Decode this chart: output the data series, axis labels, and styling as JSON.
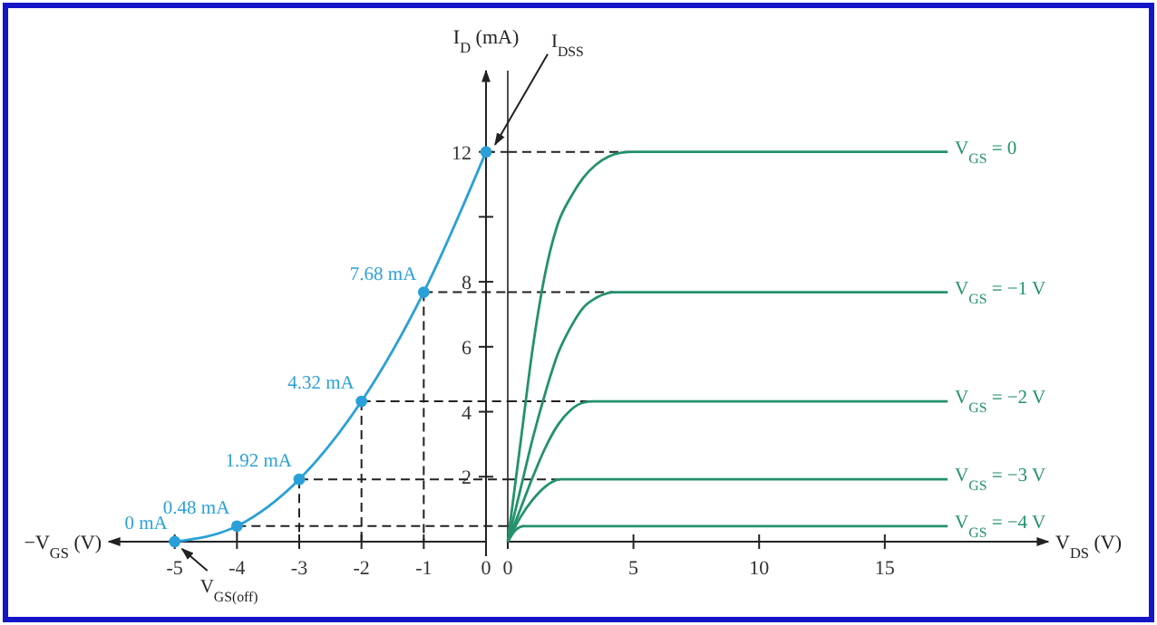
{
  "chart_data": [
    {
      "type": "line",
      "xlabel": "−V$_{GS}$ (V)",
      "ylabel": "I$_{D}$ (mA)",
      "x": [
        -5,
        -4,
        -3,
        -2,
        -1,
        0
      ],
      "xlim": [
        -6,
        0
      ],
      "xticks": [
        -5,
        -4,
        -3,
        -2,
        -1,
        0
      ],
      "ylim": [
        0,
        14.5
      ],
      "yticks": [
        2,
        4,
        6,
        8,
        {
          "value": 10,
          "label": null
        },
        12
      ],
      "marker": "circle",
      "series": [
        {
          "color": "#2aa0d8",
          "values": [
            0,
            0.48,
            1.92,
            4.32,
            7.68,
            12
          ],
          "value_labels": [
            "0 mA",
            "0.48 mA",
            "1.92 mA",
            "4.32 mA",
            "7.68 mA",
            null
          ]
        }
      ],
      "annotations": [
        {
          "text": "V$_{GS(off)}$",
          "x": -5,
          "y": 0
        },
        {
          "text": "I$_{DSS}$",
          "x": 0,
          "y": 12
        }
      ]
    },
    {
      "type": "line",
      "xlabel": "V$_{DS}$ (V)",
      "xlim": [
        0,
        21.5
      ],
      "xticks": [
        0,
        5,
        10,
        15
      ],
      "ylim": [
        0,
        14.5
      ],
      "tick_labels": "x",
      "series": [
        {
          "name": "V$_{GS}$ = 0",
          "color": "#23926a",
          "x": [
            0,
            0.5,
            1,
            1.5,
            2,
            2.5,
            3,
            3.5,
            4,
            4.5,
            5,
            17.5
          ],
          "values": [
            0,
            3,
            6,
            8.3,
            9.8,
            10.6,
            11.2,
            11.6,
            11.85,
            11.97,
            12,
            12
          ]
        },
        {
          "name": "V$_{GS}$ = −1 V",
          "color": "#23926a",
          "x": [
            0,
            0.5,
            1,
            1.5,
            2,
            2.5,
            3,
            3.5,
            4,
            4.2,
            17.5
          ],
          "values": [
            0,
            1.6,
            3.2,
            4.6,
            5.8,
            6.6,
            7.2,
            7.5,
            7.66,
            7.68,
            7.68
          ]
        },
        {
          "name": "V$_{GS}$ = −2 V",
          "color": "#23926a",
          "x": [
            0,
            0.5,
            1,
            1.5,
            2,
            2.5,
            3,
            3.4,
            17.5
          ],
          "values": [
            0,
            1,
            2,
            2.9,
            3.6,
            4.05,
            4.28,
            4.32,
            4.32
          ]
        },
        {
          "name": "V$_{GS}$ = −3 V",
          "color": "#23926a",
          "x": [
            0,
            0.5,
            1,
            1.5,
            2.1,
            17.5
          ],
          "values": [
            0,
            0.75,
            1.3,
            1.7,
            1.92,
            1.92
          ]
        },
        {
          "name": "V$_{GS}$ = −4 V",
          "color": "#23926a",
          "x": [
            0,
            0.3,
            0.65,
            17.5
          ],
          "values": [
            0,
            0.35,
            0.48,
            0.48
          ]
        }
      ]
    }
  ]
}
